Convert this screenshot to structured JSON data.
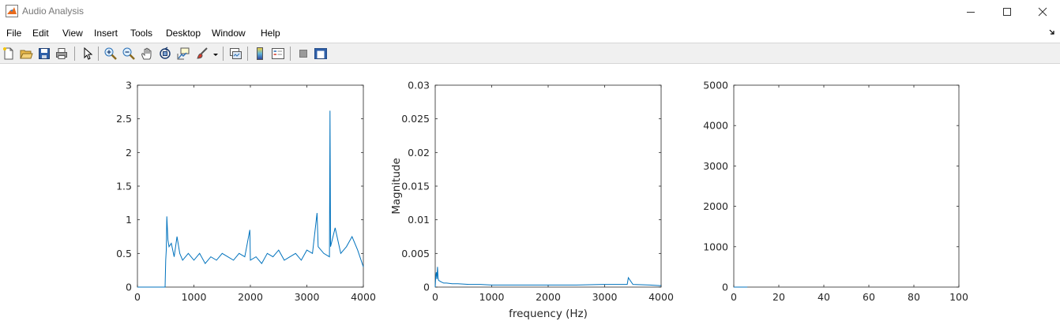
{
  "window": {
    "title": "Audio Analysis",
    "controls": [
      "minimize",
      "maximize",
      "close"
    ]
  },
  "menu": {
    "items": [
      "File",
      "Edit",
      "View",
      "Insert",
      "Tools",
      "Desktop",
      "Window",
      "Help"
    ],
    "dock_icon": "dock-arrow-icon"
  },
  "toolbar": {
    "buttons": [
      "new-figure-icon",
      "open-icon",
      "save-icon",
      "print-icon",
      "pointer-icon",
      "zoom-in-icon",
      "zoom-out-icon",
      "pan-icon",
      "rotate-3d-icon",
      "data-cursor-icon",
      "brush-icon",
      "link-plot-icon",
      "colorbar-icon",
      "legend-icon",
      "hide-plot-tools-icon",
      "show-plot-tools-icon"
    ]
  },
  "chart_data": [
    {
      "type": "line",
      "title": "",
      "xlabel": "",
      "ylabel": "",
      "xlim": [
        0,
        4000
      ],
      "ylim": [
        0,
        3
      ],
      "xticks": [
        "0",
        "1000",
        "2000",
        "3000",
        "4000"
      ],
      "yticks": [
        "0",
        "0.5",
        "1",
        "1.5",
        "2",
        "2.5",
        "3"
      ],
      "grid": false,
      "color": "#0072BD",
      "series": [
        {
          "x": [
            0,
            480,
            490,
            500,
            510,
            520,
            540,
            560,
            600,
            650,
            700,
            750,
            800,
            900,
            1000,
            1100,
            1200,
            1300,
            1400,
            1500,
            1600,
            1700,
            1800,
            1900,
            1990,
            2000,
            2100,
            2200,
            2300,
            2400,
            2500,
            2600,
            2700,
            2800,
            2900,
            3000,
            3100,
            3180,
            3200,
            3300,
            3400,
            3410,
            3420,
            3500,
            3600,
            3700,
            3800,
            3900,
            4000
          ],
          "values": [
            0,
            0,
            0,
            0.4,
            0.55,
            1.05,
            0.7,
            0.6,
            0.65,
            0.45,
            0.75,
            0.5,
            0.4,
            0.5,
            0.4,
            0.5,
            0.35,
            0.45,
            0.4,
            0.5,
            0.45,
            0.4,
            0.5,
            0.45,
            0.85,
            0.4,
            0.45,
            0.35,
            0.5,
            0.45,
            0.55,
            0.4,
            0.45,
            0.5,
            0.4,
            0.55,
            0.5,
            1.1,
            0.6,
            0.5,
            0.45,
            2.62,
            0.6,
            0.88,
            0.5,
            0.6,
            0.75,
            0.55,
            0.3
          ]
        }
      ]
    },
    {
      "type": "line",
      "title": "",
      "xlabel": "frequency (Hz)",
      "ylabel": "Magnitude",
      "xlim": [
        0,
        4000
      ],
      "ylim": [
        0,
        0.03
      ],
      "xticks": [
        "0",
        "1000",
        "2000",
        "3000",
        "4000"
      ],
      "yticks": [
        "0",
        "0.005",
        "0.01",
        "0.015",
        "0.02",
        "0.025",
        "0.03"
      ],
      "grid": false,
      "color": "#0072BD",
      "series": [
        {
          "x": [
            0,
            10,
            20,
            30,
            40,
            50,
            60,
            80,
            100,
            150,
            200,
            300,
            400,
            600,
            800,
            1000,
            1500,
            2000,
            2500,
            3000,
            3300,
            3400,
            3420,
            3500,
            3800,
            4000
          ],
          "values": [
            0,
            0.0016,
            0.0022,
            0.0012,
            0.003,
            0.0014,
            0.001,
            0.0009,
            0.0008,
            0.0006,
            0.0006,
            0.0005,
            0.0005,
            0.0004,
            0.0004,
            0.0003,
            0.0003,
            0.0003,
            0.0003,
            0.0004,
            0.0004,
            0.0004,
            0.0014,
            0.0004,
            0.0003,
            0.0002
          ]
        }
      ]
    },
    {
      "type": "line",
      "title": "",
      "xlabel": "",
      "ylabel": "",
      "xlim": [
        0,
        100
      ],
      "ylim": [
        0,
        5000
      ],
      "xticks": [
        "0",
        "20",
        "40",
        "60",
        "80",
        "100"
      ],
      "yticks": [
        "0",
        "1000",
        "2000",
        "3000",
        "4000",
        "5000"
      ],
      "grid": false,
      "color": "#0072BD",
      "series": [
        {
          "x": [
            0,
            1,
            2,
            3,
            4,
            5,
            6
          ],
          "values": [
            0,
            0,
            0,
            0,
            0,
            0,
            0
          ]
        }
      ]
    }
  ]
}
